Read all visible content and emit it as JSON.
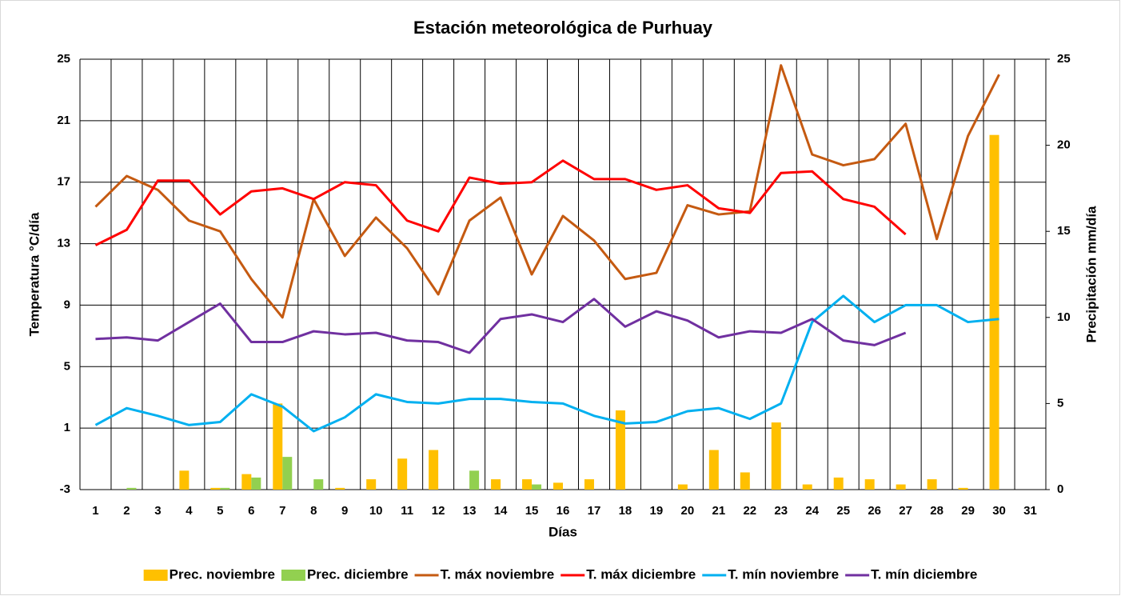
{
  "chart_data": {
    "type": "combo",
    "title": "Estación meteorológica de Purhuay",
    "x_label": "Días",
    "y_label": "Temperatura °C/día",
    "y2_label": "Precipitación mm/día",
    "categories": [
      1,
      2,
      3,
      4,
      5,
      6,
      7,
      8,
      9,
      10,
      11,
      12,
      13,
      14,
      15,
      16,
      17,
      18,
      19,
      20,
      21,
      22,
      23,
      24,
      25,
      26,
      27,
      28,
      29,
      30,
      31
    ],
    "ylim": [
      -3,
      25
    ],
    "yticks": [
      -3,
      1,
      5,
      9,
      13,
      17,
      21,
      25
    ],
    "y2lim": [
      0,
      25
    ],
    "y2ticks": [
      0,
      5,
      10,
      15,
      20,
      25
    ],
    "grid": true,
    "legend": "bottom",
    "series": [
      {
        "name": "Prec. noviembre",
        "type": "bar",
        "axis": "y2",
        "color": "#FFC000",
        "values": [
          0,
          0,
          0,
          1.1,
          0.1,
          0.9,
          5.0,
          0,
          0.1,
          0.6,
          1.8,
          2.3,
          0,
          0.6,
          0.6,
          0.4,
          0.6,
          4.6,
          0,
          0.3,
          2.3,
          1.0,
          3.9,
          0.3,
          0.7,
          0.6,
          0.3,
          0.6,
          0.1,
          20.6,
          0
        ]
      },
      {
        "name": "Prec. diciembre",
        "type": "bar",
        "axis": "y2",
        "color": "#92D050",
        "values": [
          0,
          0.1,
          0,
          0,
          0.1,
          0.7,
          1.9,
          0.6,
          0,
          0,
          0,
          0,
          1.1,
          0,
          0.3,
          0,
          0,
          0,
          0,
          0,
          0,
          0,
          0,
          0,
          0,
          0,
          0,
          null,
          null,
          null,
          null
        ]
      },
      {
        "name": "T. máx noviembre",
        "type": "line",
        "color": "#C55A11",
        "values": [
          15.4,
          17.4,
          16.5,
          14.5,
          13.8,
          10.7,
          8.2,
          15.9,
          12.2,
          14.7,
          12.7,
          9.7,
          14.5,
          16.0,
          11.0,
          14.8,
          13.2,
          10.7,
          11.1,
          15.5,
          14.9,
          15.1,
          24.6,
          18.8,
          18.1,
          18.5,
          20.8,
          13.3,
          20.0,
          24.0,
          null
        ]
      },
      {
        "name": "T. máx diciembre",
        "type": "line",
        "color": "#FF0000",
        "values": [
          12.9,
          13.9,
          17.1,
          17.1,
          14.9,
          16.4,
          16.6,
          15.9,
          17.0,
          16.8,
          14.5,
          13.8,
          17.3,
          16.9,
          17.0,
          18.4,
          17.2,
          17.2,
          16.5,
          16.8,
          15.3,
          15.0,
          17.6,
          17.7,
          15.9,
          15.4,
          13.6,
          null,
          null,
          null,
          null
        ]
      },
      {
        "name": "T. mín noviembre",
        "type": "line",
        "color": "#00B0F0",
        "values": [
          1.2,
          2.3,
          1.8,
          1.2,
          1.4,
          3.2,
          2.4,
          0.8,
          1.7,
          3.2,
          2.7,
          2.6,
          2.9,
          2.9,
          2.7,
          2.6,
          1.8,
          1.3,
          1.4,
          2.1,
          2.3,
          1.6,
          2.6,
          7.9,
          9.6,
          7.9,
          9.0,
          9.0,
          7.9,
          8.1,
          null
        ]
      },
      {
        "name": "T. mín diciembre",
        "type": "line",
        "color": "#7030A0",
        "values": [
          6.8,
          6.9,
          6.7,
          7.9,
          9.1,
          6.6,
          6.6,
          7.3,
          7.1,
          7.2,
          6.7,
          6.6,
          5.9,
          8.1,
          8.4,
          7.9,
          9.4,
          7.6,
          8.6,
          8.0,
          6.9,
          7.3,
          7.2,
          8.1,
          6.7,
          6.4,
          7.2,
          null,
          null,
          null,
          null
        ]
      }
    ]
  }
}
